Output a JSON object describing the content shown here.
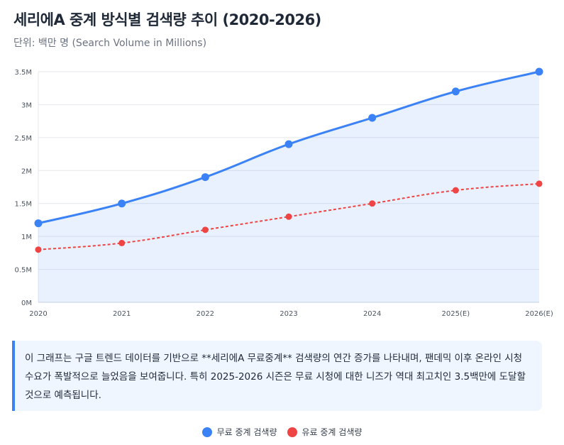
{
  "title": "세리에A 중계 방식별 검색량 추이 (2020-2026)",
  "subtitle": "단위: 백만 명 (Search Volume in Millions)",
  "note": "이 그래프는 구글 트렌드 데이터를 기반으로 **세리에A 무료중계** 검색량의 연간 증가를 나타내며, 팬데믹 이후 온라인 시청 수요가 폭발적으로 늘었음을 보여줍니다. 특히 2025-2026 시즌은 무료 시청에 대한 니즈가 역대 최고치인 3.5백만에 도달할 것으로 예측됩니다.",
  "chart_data": {
    "type": "line",
    "categories": [
      "2020",
      "2021",
      "2022",
      "2023",
      "2024",
      "2025(E)",
      "2026(E)"
    ],
    "ylim": [
      0,
      3.5
    ],
    "yticks": [
      "0M",
      "0.5M",
      "1M",
      "1.5M",
      "2M",
      "2.5M",
      "3M",
      "3.5M"
    ],
    "grid": true,
    "legend": "bottom",
    "series": [
      {
        "name": "무료 중계 검색량",
        "values": [
          1.2,
          1.5,
          1.9,
          2.4,
          2.8,
          3.2,
          3.5
        ],
        "color": "#3b82f6",
        "fill": true,
        "dashed": false
      },
      {
        "name": "유료 중계 검색량",
        "values": [
          0.8,
          0.9,
          1.1,
          1.3,
          1.5,
          1.7,
          1.8
        ],
        "color": "#ef4444",
        "fill": false,
        "dashed": true
      }
    ]
  }
}
